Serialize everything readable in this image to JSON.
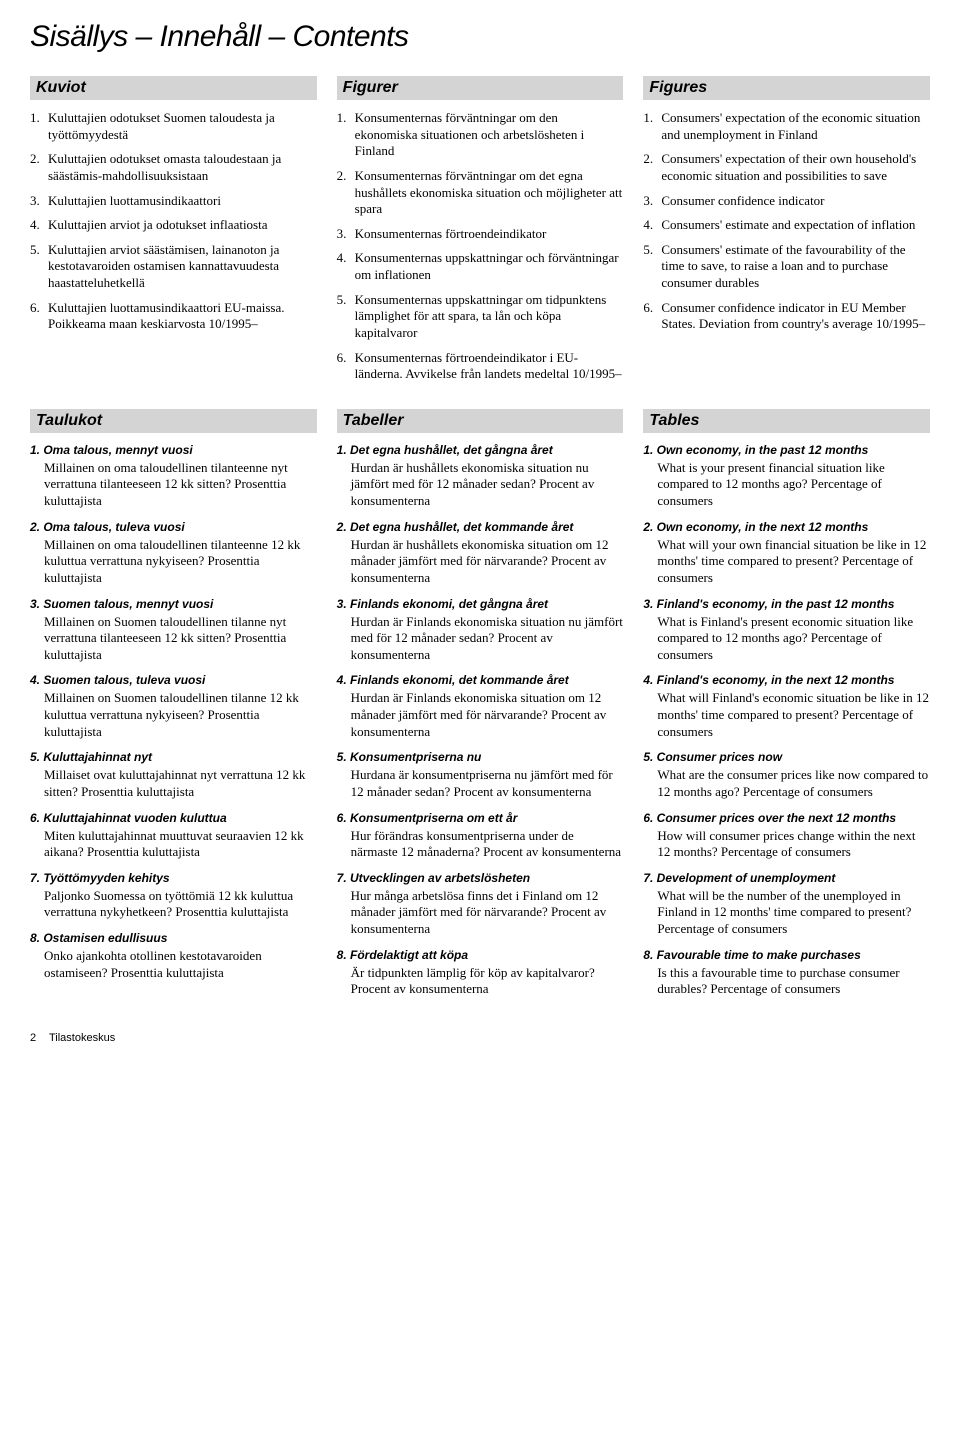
{
  "title": "Sisällys – Innehåll – Contents",
  "figuresHeaders": [
    "Kuviot",
    "Figurer",
    "Figures"
  ],
  "tablesHeaders": [
    "Taulukot",
    "Tabeller",
    "Tables"
  ],
  "figures": {
    "fi": [
      {
        "n": "1.",
        "t": "Kuluttajien odotukset Suomen taloudesta ja työttömyydestä"
      },
      {
        "n": "2.",
        "t": "Kuluttajien odotukset omasta taloudestaan ja säästämis-mahdollisuuksistaan"
      },
      {
        "n": "3.",
        "t": "Kuluttajien luottamusindikaattori"
      },
      {
        "n": "4.",
        "t": "Kuluttajien arviot ja odotukset inflaatiosta"
      },
      {
        "n": "5.",
        "t": "Kuluttajien arviot säästämisen, lainanoton ja kestotavaroiden ostamisen kannattavuudesta haastatteluhetkellä"
      },
      {
        "n": "6.",
        "t": "Kuluttajien luottamusindikaattori EU-maissa. Poikkeama maan keskiarvosta 10/1995–"
      }
    ],
    "sv": [
      {
        "n": "1.",
        "t": "Konsumenternas förväntningar om den ekonomiska situationen och arbetslösheten i Finland"
      },
      {
        "n": "2.",
        "t": "Konsumenternas förväntningar om det egna hushållets ekonomiska situation och möjligheter att spara"
      },
      {
        "n": "3.",
        "t": "Konsumenternas förtroendeindikator"
      },
      {
        "n": "4.",
        "t": "Konsumenternas uppskattningar och förväntningar om inflationen"
      },
      {
        "n": "5.",
        "t": "Konsumenternas uppskattningar om tidpunktens lämplighet för att spara, ta lån och köpa kapitalvaror"
      },
      {
        "n": "6.",
        "t": "Konsumenternas förtroendeindikator i EU-länderna. Avvikelse från landets medeltal 10/1995–"
      }
    ],
    "en": [
      {
        "n": "1.",
        "t": "Consumers' expectation of the economic situation and unemployment in Finland"
      },
      {
        "n": "2.",
        "t": "Consumers' expectation of their own household's economic situation and possibilities to save"
      },
      {
        "n": "3.",
        "t": "Consumer confidence indicator"
      },
      {
        "n": "4.",
        "t": "Consumers' estimate and expectation of inflation"
      },
      {
        "n": "5.",
        "t": "Consumers' estimate of the favourability of the time to save, to raise a loan and to purchase consumer durables"
      },
      {
        "n": "6.",
        "t": "Consumer confidence indicator in EU Member States. Deviation from country's average 10/1995–"
      }
    ]
  },
  "tables": {
    "fi": [
      {
        "h": "1. Oma talous, mennyt vuosi",
        "d": "Millainen on oma taloudellinen tilanteenne nyt verrattuna tilanteeseen 12 kk sitten? Prosenttia kuluttajista"
      },
      {
        "h": "2. Oma talous, tuleva vuosi",
        "d": "Millainen on oma taloudellinen tilanteenne 12 kk kuluttua verrattuna nykyiseen? Prosenttia kuluttajista"
      },
      {
        "h": "3. Suomen talous, mennyt vuosi",
        "d": "Millainen on Suomen taloudellinen tilanne nyt verrattuna tilanteeseen 12 kk sitten? Prosenttia kuluttajista"
      },
      {
        "h": "4. Suomen talous, tuleva vuosi",
        "d": "Millainen on Suomen taloudellinen tilanne 12 kk kuluttua verrattuna nykyiseen? Prosenttia kuluttajista"
      },
      {
        "h": "5. Kuluttajahinnat nyt",
        "d": "Millaiset ovat kuluttajahinnat nyt verrattuna 12 kk sitten? Prosenttia kuluttajista"
      },
      {
        "h": "6. Kuluttajahinnat vuoden kuluttua",
        "d": "Miten kuluttajahinnat muuttuvat seuraavien 12 kk aikana? Prosenttia kuluttajista"
      },
      {
        "h": "7. Työttömyyden kehitys",
        "d": "Paljonko Suomessa on työttömiä 12 kk kuluttua verrattuna nykyhetkeen? Prosenttia kuluttajista"
      },
      {
        "h": "8. Ostamisen edullisuus",
        "d": "Onko ajankohta otollinen kestotavaroiden ostamiseen? Prosenttia kuluttajista"
      }
    ],
    "sv": [
      {
        "h": "1. Det egna hushållet, det gångna året",
        "d": "Hurdan är hushållets ekonomiska situation nu jämfört med för 12 månader sedan? Procent av konsumenterna"
      },
      {
        "h": "2. Det egna hushållet, det kommande året",
        "d": "Hurdan är hushållets ekonomiska situation om 12 månader jämfört med för närvarande? Procent av konsumenterna"
      },
      {
        "h": "3. Finlands ekonomi, det gångna året",
        "d": "Hurdan är Finlands ekonomiska situation nu jämfört med för 12 månader sedan? Procent av konsumenterna"
      },
      {
        "h": "4. Finlands ekonomi, det kommande året",
        "d": "Hurdan är Finlands ekonomiska situation om 12 månader jämfört med för närvarande? Procent av konsumenterna"
      },
      {
        "h": "5. Konsumentpriserna nu",
        "d": "Hurdana är konsumentpriserna nu jämfört med för 12 månader sedan? Procent av konsumenterna"
      },
      {
        "h": "6. Konsumentpriserna om ett år",
        "d": "Hur förändras konsumentpriserna under de närmaste 12 månaderna? Procent av konsumenterna"
      },
      {
        "h": "7. Utvecklingen av arbetslösheten",
        "d": "Hur många arbetslösa finns det i Finland om 12 månader jämfört med för närvarande? Procent av konsumenterna"
      },
      {
        "h": "8. Fördelaktigt att köpa",
        "d": "Är tidpunkten lämplig för köp av kapitalvaror? Procent av konsumenterna"
      }
    ],
    "en": [
      {
        "h": "1. Own economy, in the past 12 months",
        "d": "What is your present financial situation like compared to 12 months ago? Percentage of consumers"
      },
      {
        "h": "2. Own economy, in the next 12 months",
        "d": "What will your own financial situation be like in 12 months' time compared to present? Percentage of consumers"
      },
      {
        "h": "3. Finland's economy, in the past 12 months",
        "d": "What is Finland's present economic situation like compared to 12 months ago? Percentage of consumers"
      },
      {
        "h": "4. Finland's economy, in the next 12 months",
        "d": "What will Finland's economic situation be like in 12 months' time compared to present? Percentage of consumers"
      },
      {
        "h": "5. Consumer prices  now",
        "d": "What are the consumer prices like now compared to 12 months ago? Percentage of consumers"
      },
      {
        "h": "6. Consumer prices over the next 12 months",
        "d": "How will consumer prices change within the next 12 months? Percentage of consumers"
      },
      {
        "h": "7. Development of unemployment",
        "d": "What will be the number of the unemployed in Finland in 12 months' time compared to present? Percentage of consumers"
      },
      {
        "h": "8. Favourable time to make purchases",
        "d": "Is this a favourable time to purchase consumer durables? Percentage of consumers"
      }
    ]
  },
  "footer": {
    "page": "2",
    "publisher": "Tilastokeskus"
  }
}
